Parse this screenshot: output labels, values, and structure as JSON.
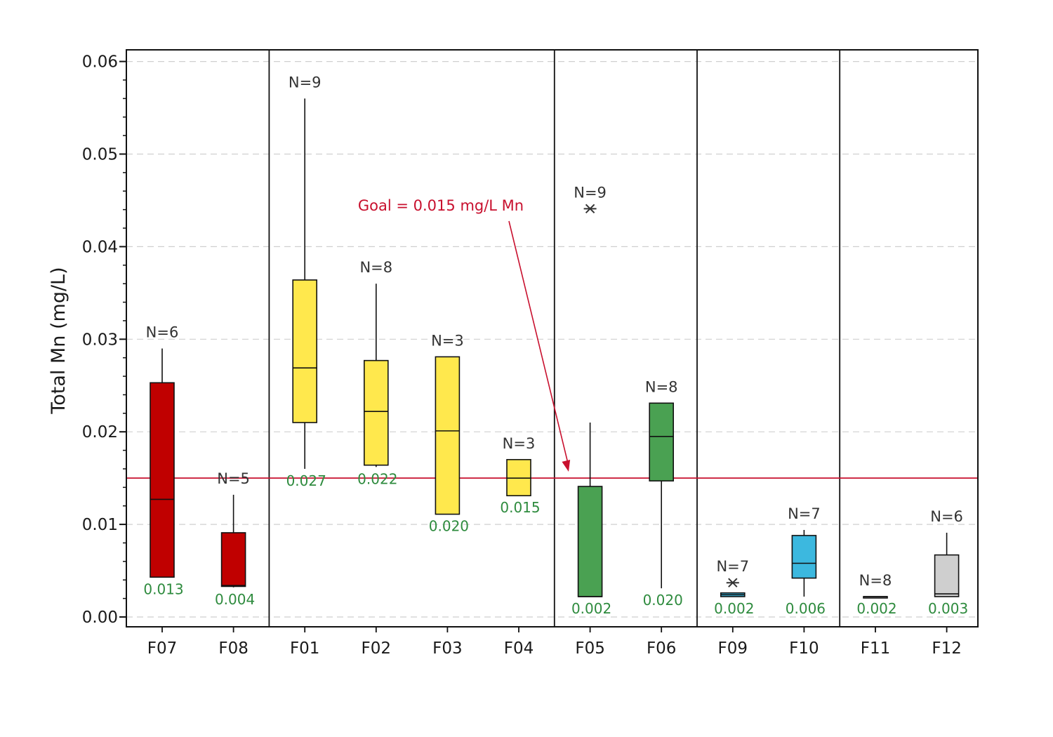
{
  "chart_data": {
    "type": "box",
    "ylabel": "Total Mn (mg/L)",
    "xlabel": "",
    "ylim": [
      0,
      0.06
    ],
    "yticks": [
      "0.00",
      "0.01",
      "0.02",
      "0.03",
      "0.04",
      "0.05",
      "0.06"
    ],
    "grid": "horizontal-dashed",
    "groups": [
      [
        "F07",
        "F08"
      ],
      [
        "F01",
        "F02",
        "F03",
        "F04"
      ],
      [
        "F05",
        "F06"
      ],
      [
        "F09",
        "F10"
      ],
      [
        "F11",
        "F12"
      ]
    ],
    "reference_line": {
      "value": 0.015,
      "color": "#c8102e",
      "label": "Goal = 0.015 mg/L Mn"
    },
    "boxes": [
      {
        "category": "F07",
        "n_label": "N=6",
        "mean_label": "0.013",
        "whisker_low": 0.0043,
        "q1": 0.0043,
        "median": 0.0127,
        "q3": 0.0253,
        "whisker_high": 0.029,
        "outliers": [],
        "color": "#c00000"
      },
      {
        "category": "F08",
        "n_label": "N=5",
        "mean_label": "0.004",
        "whisker_low": 0.0032,
        "q1": 0.0033,
        "median": 0.0034,
        "q3": 0.0091,
        "whisker_high": 0.0132,
        "outliers": [],
        "color": "#c00000"
      },
      {
        "category": "F01",
        "n_label": "N=9",
        "mean_label": "0.027",
        "whisker_low": 0.016,
        "q1": 0.021,
        "median": 0.0269,
        "q3": 0.0364,
        "whisker_high": 0.056,
        "outliers": [],
        "color": "#ffe84d"
      },
      {
        "category": "F02",
        "n_label": "N=8",
        "mean_label": "0.022",
        "whisker_low": 0.0162,
        "q1": 0.0164,
        "median": 0.0222,
        "q3": 0.0277,
        "whisker_high": 0.036,
        "outliers": [],
        "color": "#ffe84d"
      },
      {
        "category": "F03",
        "n_label": "N=3",
        "mean_label": "0.020",
        "whisker_low": 0.0111,
        "q1": 0.0111,
        "median": 0.0201,
        "q3": 0.0281,
        "whisker_high": 0.0281,
        "outliers": [],
        "color": "#ffe84d"
      },
      {
        "category": "F04",
        "n_label": "N=3",
        "mean_label": "0.015",
        "whisker_low": 0.0131,
        "q1": 0.0131,
        "median": 0.015,
        "q3": 0.017,
        "whisker_high": 0.017,
        "outliers": [],
        "color": "#ffe84d"
      },
      {
        "category": "F05",
        "n_label": "N=9",
        "mean_label": "0.002",
        "whisker_low": 0.0022,
        "q1": 0.0022,
        "median": 0.0022,
        "q3": 0.0141,
        "whisker_high": 0.021,
        "outliers": [
          0.0441
        ],
        "color": "#4aa152"
      },
      {
        "category": "F06",
        "n_label": "N=8",
        "mean_label": "0.020",
        "whisker_low": 0.0031,
        "q1": 0.0147,
        "median": 0.0195,
        "q3": 0.0231,
        "whisker_high": 0.0231,
        "outliers": [],
        "color": "#4aa152"
      },
      {
        "category": "F09",
        "n_label": "N=7",
        "mean_label": "0.002",
        "whisker_low": 0.0022,
        "q1": 0.0022,
        "median": 0.0024,
        "q3": 0.0026,
        "whisker_high": 0.0026,
        "outliers": [
          0.0037
        ],
        "color": "#3cb8df"
      },
      {
        "category": "F10",
        "n_label": "N=7",
        "mean_label": "0.006",
        "whisker_low": 0.0022,
        "q1": 0.0042,
        "median": 0.0058,
        "q3": 0.0088,
        "whisker_high": 0.0094,
        "outliers": [],
        "color": "#3cb8df"
      },
      {
        "category": "F11",
        "n_label": "N=8",
        "mean_label": "0.002",
        "whisker_low": 0.0022,
        "q1": 0.0022,
        "median": 0.0022,
        "q3": 0.0022,
        "whisker_high": 0.0022,
        "outliers": [],
        "color": "#cfcfcf"
      },
      {
        "category": "F12",
        "n_label": "N=6",
        "mean_label": "0.003",
        "whisker_low": 0.0022,
        "q1": 0.0022,
        "median": 0.0025,
        "q3": 0.0067,
        "whisker_high": 0.0091,
        "outliers": [],
        "color": "#cfcfcf"
      }
    ]
  }
}
